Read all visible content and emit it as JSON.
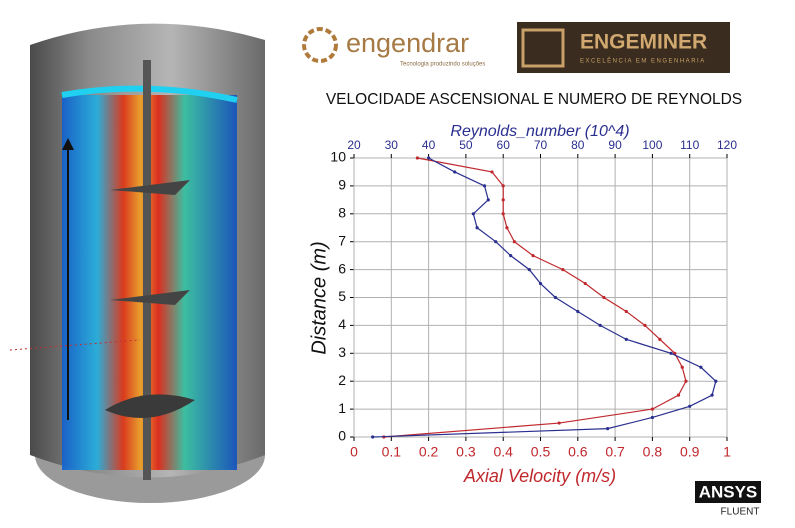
{
  "logos": {
    "left_name": "engendrar",
    "left_tagline": "Tecnologia produzindo soluções",
    "right_name": "ENGEMINER",
    "right_tagline": "EXCELÊNCIA EM ENGENHARIA",
    "software": "ANSYS",
    "software_product": "FLUENT"
  },
  "chart_data": {
    "type": "line",
    "title": "VELOCIDADE ASCENSIONAL E NUMERO DE REYNOLDS",
    "x_label": "Axial Velocity (m/s)",
    "x2_label": "Reynolds_number (10^4)",
    "y_label": "Distance (m)",
    "xlim": [
      0,
      1
    ],
    "xticks": [
      0,
      0.1,
      0.2,
      0.3,
      0.4,
      0.5,
      0.6,
      0.7,
      0.8,
      0.9,
      1
    ],
    "x2lim": [
      20,
      120
    ],
    "x2ticks": [
      20,
      30,
      40,
      50,
      60,
      70,
      80,
      90,
      100,
      110,
      120
    ],
    "ylim": [
      0,
      10
    ],
    "yticks": [
      0,
      1,
      2,
      3,
      4,
      5,
      6,
      7,
      8,
      9,
      10
    ],
    "grid": true,
    "series": [
      {
        "name": "Axial Velocity (m/s)",
        "axis": "x",
        "color": "#c0282d",
        "values": [
          0.08,
          0.55,
          0.8,
          0.87,
          0.89,
          0.88,
          0.86,
          0.82,
          0.78,
          0.73,
          0.67,
          0.62,
          0.56,
          0.48,
          0.43,
          0.41,
          0.4,
          0.4,
          0.4,
          0.37,
          0.17
        ],
        "distance": [
          0,
          0.5,
          1,
          1.5,
          2,
          2.5,
          3,
          3.5,
          4,
          4.5,
          5,
          5.5,
          6,
          6.5,
          7,
          7.5,
          8,
          8.5,
          9,
          9.5,
          10
        ]
      },
      {
        "name": "Reynolds_number (10^4)",
        "axis": "x2",
        "color": "#2a2f8f",
        "values": [
          25,
          88,
          100,
          110,
          116,
          117,
          113,
          105,
          93,
          86,
          80,
          74,
          70,
          67,
          62,
          58,
          53,
          52,
          56,
          55,
          47,
          40
        ],
        "distance": [
          0,
          0.3,
          0.7,
          1.1,
          1.5,
          2,
          2.5,
          3,
          3.5,
          4,
          4.5,
          5,
          5.5,
          6,
          6.5,
          7,
          7.5,
          8,
          8.5,
          9,
          9.5,
          10
        ]
      }
    ]
  }
}
